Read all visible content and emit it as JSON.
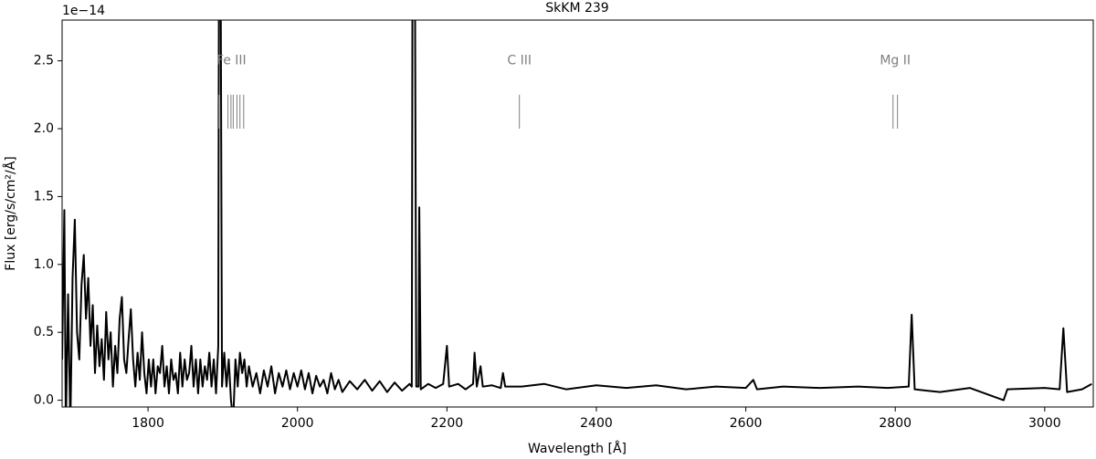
{
  "chart_data": {
    "type": "line",
    "title": "SkKM 239",
    "xlabel": "Wavelength [Å]",
    "ylabel": "Flux [erg/s/cm²/Å]",
    "offset_label": "1e−14",
    "color": "#000000",
    "x": [
      1685,
      1688,
      1690,
      1693,
      1696,
      1699,
      1702,
      1705,
      1708,
      1711,
      1714,
      1717,
      1720,
      1723,
      1726,
      1729,
      1732,
      1735,
      1738,
      1741,
      1744,
      1747,
      1750,
      1753,
      1756,
      1759,
      1762,
      1765,
      1768,
      1771,
      1774,
      1777,
      1780,
      1783,
      1786,
      1789,
      1792,
      1795,
      1798,
      1801,
      1804,
      1807,
      1810,
      1813,
      1816,
      1819,
      1822,
      1825,
      1828,
      1831,
      1834,
      1837,
      1840,
      1843,
      1846,
      1849,
      1852,
      1855,
      1858,
      1861,
      1864,
      1867,
      1870,
      1873,
      1876,
      1879,
      1882,
      1885,
      1888,
      1891,
      1894,
      1895,
      1897,
      1899,
      1902,
      1905,
      1908,
      1911,
      1914,
      1917,
      1920,
      1923,
      1926,
      1929,
      1932,
      1935,
      1940,
      1945,
      1950,
      1955,
      1960,
      1965,
      1970,
      1975,
      1980,
      1985,
      1990,
      1995,
      2000,
      2005,
      2010,
      2015,
      2020,
      2025,
      2030,
      2035,
      2040,
      2045,
      2050,
      2055,
      2060,
      2070,
      2080,
      2090,
      2100,
      2110,
      2120,
      2130,
      2140,
      2150,
      2153,
      2154,
      2157,
      2159,
      2162,
      2163,
      2165,
      2175,
      2185,
      2195,
      2200,
      2203,
      2215,
      2225,
      2235,
      2237,
      2240,
      2245,
      2248,
      2260,
      2272,
      2275,
      2278,
      2300,
      2330,
      2360,
      2400,
      2440,
      2480,
      2520,
      2560,
      2600,
      2610,
      2615,
      2650,
      2700,
      2750,
      2790,
      2818,
      2822,
      2826,
      2860,
      2900,
      2945,
      2950,
      3000,
      3020,
      3025,
      3030,
      3050,
      3063
    ],
    "values": [
      0.3,
      1.4,
      -0.2,
      0.78,
      -0.2,
      0.9,
      1.33,
      0.5,
      0.3,
      0.85,
      1.07,
      0.6,
      0.9,
      0.4,
      0.7,
      0.2,
      0.55,
      0.25,
      0.45,
      0.15,
      0.65,
      0.3,
      0.5,
      0.1,
      0.4,
      0.2,
      0.6,
      0.76,
      0.3,
      0.2,
      0.45,
      0.67,
      0.3,
      0.1,
      0.35,
      0.15,
      0.5,
      0.2,
      0.05,
      0.3,
      0.1,
      0.3,
      0.05,
      0.25,
      0.2,
      0.4,
      0.1,
      0.25,
      0.05,
      0.3,
      0.15,
      0.2,
      0.05,
      0.35,
      0.1,
      0.3,
      0.15,
      0.2,
      0.4,
      0.1,
      0.3,
      0.05,
      0.3,
      0.1,
      0.25,
      0.15,
      0.35,
      0.1,
      0.3,
      0.05,
      0.4,
      3.5,
      3.5,
      0.1,
      0.35,
      0.1,
      0.3,
      0.0,
      -0.15,
      0.3,
      0.1,
      0.35,
      0.2,
      0.3,
      0.1,
      0.25,
      0.1,
      0.2,
      0.05,
      0.22,
      0.1,
      0.25,
      0.05,
      0.2,
      0.1,
      0.22,
      0.08,
      0.2,
      0.1,
      0.22,
      0.08,
      0.2,
      0.05,
      0.18,
      0.1,
      0.15,
      0.05,
      0.2,
      0.08,
      0.15,
      0.06,
      0.14,
      0.08,
      0.15,
      0.07,
      0.14,
      0.06,
      0.13,
      0.07,
      0.12,
      0.1,
      3.5,
      3.5,
      0.1,
      0.1,
      1.42,
      0.08,
      0.12,
      0.09,
      0.12,
      0.4,
      0.1,
      0.12,
      0.08,
      0.12,
      0.35,
      0.1,
      0.25,
      0.1,
      0.11,
      0.09,
      0.2,
      0.1,
      0.1,
      0.12,
      0.08,
      0.11,
      0.09,
      0.11,
      0.08,
      0.1,
      0.09,
      0.15,
      0.08,
      0.1,
      0.09,
      0.1,
      0.09,
      0.1,
      0.63,
      0.08,
      0.06,
      0.09,
      0.0,
      0.08,
      0.09,
      0.08,
      0.53,
      0.06,
      0.08,
      0.12
    ],
    "xlim": [
      1685,
      3065
    ],
    "ylim": [
      -0.05,
      2.8
    ],
    "xticks": [
      1800,
      2000,
      2200,
      2400,
      2600,
      2800,
      3000
    ],
    "yticks": [
      {
        "value": 0,
        "label": "0.0"
      },
      0.5,
      {
        "value": 1,
        "label": "1.0"
      },
      1.5,
      {
        "value": 2,
        "label": "2.0"
      },
      2.5
    ],
    "line_markers": [
      {
        "label": "Fe III",
        "wavelengths": [
          1895,
          1907,
          1911,
          1914,
          1919,
          1923,
          1928
        ]
      },
      {
        "label": "C III",
        "wavelengths": [
          2297
        ]
      },
      {
        "label": "Mg II",
        "wavelengths": [
          2797,
          2803
        ]
      }
    ],
    "marker_color": "#808080"
  }
}
